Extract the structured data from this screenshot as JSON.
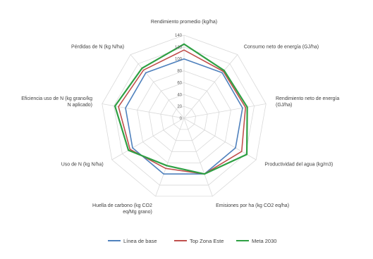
{
  "chart_data": {
    "type": "radar",
    "title": "",
    "categories": [
      "Rendimiento promedio (kg/ha)",
      "Consumo neto de energía (GJ/ha)",
      "Rendimiento neto de energía (GJ/ha)",
      "Productividad del agua (kg/m3)",
      "Emisiones por ha (kg CO2 eq/ha)",
      "Huella de carbono (kg CO2 eq/Mg grano)",
      "Uso de N (kg N/ha)",
      "Eficiencia uso de N (kg grano/kg N aplicado)",
      "Pérdidas de N (kg N/ha)"
    ],
    "category_lines": [
      [
        "Rendimiento promedio (kg/ha)"
      ],
      [
        "Consumo neto de energía (GJ/ha)"
      ],
      [
        "Rendimiento neto de energía",
        "(GJ/ha)"
      ],
      [
        "Productividad del agua (kg/m3)"
      ],
      [
        "Emisiones por ha (kg CO2 eq/ha)"
      ],
      [
        "Huella de carbono (kg CO2",
        "eq/Mg grano)"
      ],
      [
        "Uso de N (kg N/ha)"
      ],
      [
        "Eficiencia uso de N (kg grano/kg",
        "N aplicado)"
      ],
      [
        "Pérdidas de N (kg N/ha)"
      ]
    ],
    "ticks": [
      "0",
      "20",
      "40",
      "60",
      "80",
      "100",
      "120",
      "140"
    ],
    "rmax": 140,
    "series": [
      {
        "name": "Línea de base",
        "color": "#4F81BD",
        "values": [
          100,
          100,
          100,
          100,
          100,
          100,
          100,
          100,
          100
        ]
      },
      {
        "name": "Top Zona Este",
        "color": "#C0504D",
        "values": [
          115,
          103,
          105,
          112,
          100,
          90,
          105,
          112,
          106
        ]
      },
      {
        "name": "Meta 2030",
        "color": "#2EA043",
        "values": [
          125,
          105,
          108,
          122,
          100,
          85,
          108,
          118,
          110
        ]
      }
    ],
    "grid": true,
    "legend_position": "bottom"
  }
}
